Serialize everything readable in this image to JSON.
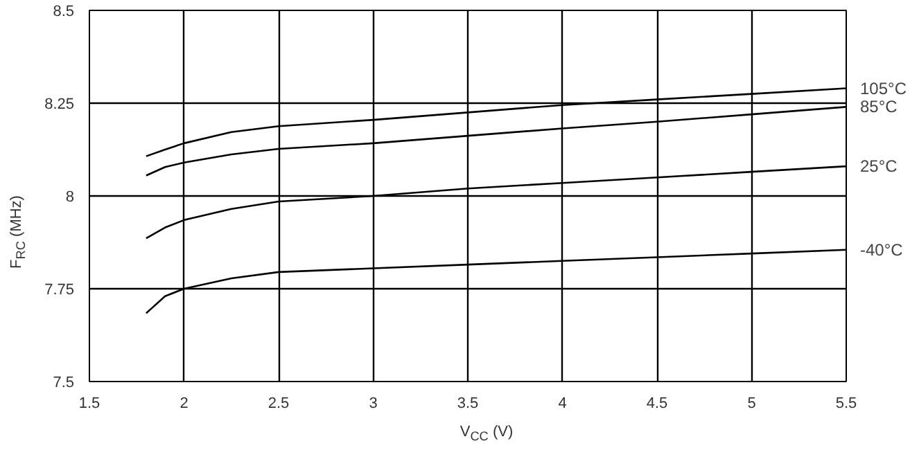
{
  "chart_data": {
    "type": "line",
    "xlabel": "V$_{CC}$ (V)",
    "ylabel": "F$_{RC}$ (MHz)",
    "xlim": [
      1.5,
      5.5
    ],
    "xticks": [
      1.5,
      2,
      2.5,
      3,
      3.5,
      4,
      4.5,
      5,
      5.5
    ],
    "ylim": [
      7.5,
      8.5
    ],
    "yticks": [
      7.5,
      7.75,
      8,
      8.25,
      8.5
    ],
    "grid": true,
    "legend": false,
    "series": [
      {
        "name": "105°C",
        "color": "#000000",
        "x": [
          1.8,
          1.9,
          2,
          2.25,
          2.5,
          3,
          3.5,
          4,
          4.5,
          5,
          5.5
        ],
        "values": [
          8.107,
          8.125,
          8.142,
          8.172,
          8.188,
          8.205,
          8.225,
          8.245,
          8.26,
          8.275,
          8.29
        ]
      },
      {
        "name": "85°C",
        "color": "#000000",
        "x": [
          1.8,
          1.9,
          2,
          2.25,
          2.5,
          3,
          3.5,
          4,
          4.5,
          5,
          5.5
        ],
        "values": [
          8.055,
          8.078,
          8.09,
          8.112,
          8.127,
          8.142,
          8.162,
          8.182,
          8.2,
          8.22,
          8.24
        ]
      },
      {
        "name": "25°C",
        "color": "#000000",
        "x": [
          1.8,
          1.9,
          2,
          2.25,
          2.5,
          3,
          3.5,
          4,
          4.5,
          5,
          5.5
        ],
        "values": [
          7.886,
          7.915,
          7.935,
          7.965,
          7.985,
          8.0,
          8.02,
          8.035,
          8.05,
          8.065,
          8.08
        ]
      },
      {
        "name": "-40°C",
        "color": "#000000",
        "x": [
          1.8,
          1.9,
          2,
          2.25,
          2.5,
          3,
          3.5,
          4,
          4.5,
          5,
          5.5
        ],
        "values": [
          7.684,
          7.73,
          7.75,
          7.778,
          7.795,
          7.805,
          7.815,
          7.825,
          7.835,
          7.845,
          7.855
        ]
      }
    ]
  }
}
